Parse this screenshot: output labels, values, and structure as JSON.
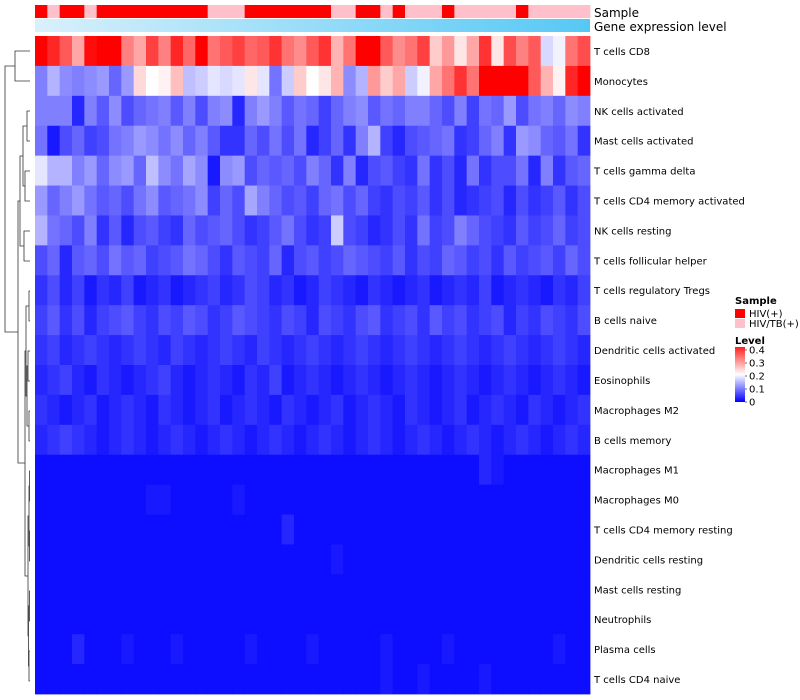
{
  "chart_data": {
    "type": "heatmap",
    "annotation_tracks": [
      "Sample",
      "Gene expression level"
    ],
    "rows": [
      "T cells CD8",
      "Monocytes",
      "NK cells activated",
      "Mast cells activated",
      "T cells gamma delta",
      "T cells CD4 memory activated",
      "NK cells resting",
      "T cells follicular helper",
      "T cells regulatory  Tregs",
      "B cells naive",
      "Dendritic cells activated",
      "Eosinophils",
      "Macrophages M2",
      "B cells memory",
      "Macrophages M1",
      "Macrophages M0",
      "T cells CD4 memory resting",
      "Dendritic cells resting",
      "Mast cells resting",
      "Neutrophils",
      "Plasma cells",
      "T cells CD4 naive"
    ],
    "n_columns": 45,
    "sample_groups": [
      "HIV(+)",
      "HIV/TB(+)",
      "HIV(+)",
      "HIV(+)",
      "HIV/TB(+)",
      "HIV(+)",
      "HIV(+)",
      "HIV(+)",
      "HIV(+)",
      "HIV(+)",
      "HIV(+)",
      "HIV(+)",
      "HIV(+)",
      "HIV(+)",
      "HIV/TB(+)",
      "HIV/TB(+)",
      "HIV/TB(+)",
      "HIV(+)",
      "HIV(+)",
      "HIV(+)",
      "HIV(+)",
      "HIV(+)",
      "HIV(+)",
      "HIV(+)",
      "HIV/TB(+)",
      "HIV/TB(+)",
      "HIV(+)",
      "HIV(+)",
      "HIV/TB(+)",
      "HIV(+)",
      "HIV/TB(+)",
      "HIV/TB(+)",
      "HIV/TB(+)",
      "HIV(+)",
      "HIV/TB(+)",
      "HIV/TB(+)",
      "HIV/TB(+)",
      "HIV/TB(+)",
      "HIV/TB(+)",
      "HIV(+)",
      "HIV/TB(+)",
      "HIV/TB(+)",
      "HIV/TB(+)",
      "HIV/TB(+)",
      "HIV/TB(+)"
    ],
    "values": [
      [
        0.42,
        0.37,
        0.33,
        0.27,
        0.39,
        0.4,
        0.41,
        0.3,
        0.27,
        0.35,
        0.3,
        0.37,
        0.32,
        0.4,
        0.31,
        0.33,
        0.35,
        0.32,
        0.33,
        0.36,
        0.31,
        0.29,
        0.33,
        0.36,
        0.26,
        0.31,
        0.41,
        0.4,
        0.33,
        0.29,
        0.31,
        0.35,
        0.24,
        0.28,
        0.22,
        0.27,
        0.36,
        0.22,
        0.34,
        0.3,
        0.33,
        0.17,
        0.19,
        0.31,
        0.34
      ],
      [
        0.1,
        0.14,
        0.11,
        0.1,
        0.11,
        0.12,
        0.08,
        0.12,
        0.23,
        0.2,
        0.21,
        0.25,
        0.15,
        0.16,
        0.18,
        0.17,
        0.18,
        0.22,
        0.18,
        0.09,
        0.16,
        0.24,
        0.2,
        0.22,
        0.26,
        0.11,
        0.14,
        0.28,
        0.24,
        0.27,
        0.16,
        0.19,
        0.27,
        0.31,
        0.36,
        0.31,
        0.42,
        0.4,
        0.46,
        0.44,
        0.33,
        0.26,
        0.21,
        0.37,
        0.44
      ],
      [
        0.1,
        0.1,
        0.1,
        0.03,
        0.1,
        0.07,
        0.11,
        0.06,
        0.08,
        0.09,
        0.1,
        0.07,
        0.1,
        0.06,
        0.1,
        0.11,
        0.03,
        0.1,
        0.12,
        0.1,
        0.07,
        0.09,
        0.08,
        0.05,
        0.08,
        0.1,
        0.11,
        0.07,
        0.09,
        0.08,
        0.1,
        0.1,
        0.08,
        0.06,
        0.1,
        0.05,
        0.09,
        0.08,
        0.12,
        0.06,
        0.09,
        0.1,
        0.08,
        0.11,
        0.1
      ],
      [
        0.09,
        0.02,
        0.06,
        0.08,
        0.05,
        0.06,
        0.09,
        0.1,
        0.12,
        0.11,
        0.09,
        0.11,
        0.08,
        0.1,
        0.07,
        0.04,
        0.04,
        0.08,
        0.06,
        0.09,
        0.06,
        0.09,
        0.03,
        0.05,
        0.08,
        0.04,
        0.1,
        0.14,
        0.05,
        0.03,
        0.06,
        0.07,
        0.08,
        0.09,
        0.04,
        0.05,
        0.08,
        0.1,
        0.04,
        0.12,
        0.11,
        0.08,
        0.07,
        0.09,
        0.04
      ],
      [
        0.18,
        0.14,
        0.14,
        0.1,
        0.12,
        0.08,
        0.11,
        0.12,
        0.08,
        0.15,
        0.11,
        0.09,
        0.13,
        0.11,
        0.02,
        0.11,
        0.12,
        0.06,
        0.08,
        0.07,
        0.08,
        0.06,
        0.1,
        0.08,
        0.04,
        0.1,
        0.03,
        0.06,
        0.07,
        0.05,
        0.04,
        0.09,
        0.04,
        0.06,
        0.03,
        0.09,
        0.04,
        0.06,
        0.06,
        0.09,
        0.03,
        0.1,
        0.04,
        0.07,
        0.08
      ],
      [
        0.12,
        0.08,
        0.1,
        0.12,
        0.09,
        0.07,
        0.08,
        0.06,
        0.09,
        0.11,
        0.07,
        0.08,
        0.09,
        0.11,
        0.05,
        0.08,
        0.06,
        0.13,
        0.1,
        0.08,
        0.06,
        0.07,
        0.05,
        0.08,
        0.09,
        0.06,
        0.08,
        0.05,
        0.04,
        0.06,
        0.05,
        0.07,
        0.04,
        0.06,
        0.03,
        0.04,
        0.05,
        0.06,
        0.03,
        0.06,
        0.04,
        0.05,
        0.07,
        0.04,
        0.06
      ],
      [
        0.14,
        0.09,
        0.08,
        0.06,
        0.1,
        0.04,
        0.07,
        0.03,
        0.06,
        0.07,
        0.05,
        0.04,
        0.08,
        0.06,
        0.07,
        0.08,
        0.06,
        0.04,
        0.05,
        0.07,
        0.09,
        0.06,
        0.04,
        0.05,
        0.16,
        0.06,
        0.05,
        0.03,
        0.04,
        0.06,
        0.04,
        0.09,
        0.05,
        0.06,
        0.1,
        0.08,
        0.06,
        0.05,
        0.04,
        0.07,
        0.05,
        0.06,
        0.08,
        0.05,
        0.06
      ],
      [
        0.06,
        0.08,
        0.03,
        0.07,
        0.08,
        0.06,
        0.09,
        0.07,
        0.08,
        0.05,
        0.06,
        0.07,
        0.09,
        0.08,
        0.06,
        0.04,
        0.07,
        0.06,
        0.05,
        0.08,
        0.03,
        0.06,
        0.07,
        0.05,
        0.06,
        0.08,
        0.07,
        0.06,
        0.05,
        0.07,
        0.04,
        0.06,
        0.05,
        0.08,
        0.07,
        0.05,
        0.06,
        0.04,
        0.07,
        0.05,
        0.06,
        0.07,
        0.05,
        0.08,
        0.06
      ],
      [
        0.04,
        0.06,
        0.03,
        0.05,
        0.02,
        0.04,
        0.03,
        0.05,
        0.02,
        0.03,
        0.04,
        0.02,
        0.03,
        0.04,
        0.05,
        0.03,
        0.04,
        0.06,
        0.05,
        0.03,
        0.04,
        0.02,
        0.03,
        0.05,
        0.04,
        0.03,
        0.02,
        0.04,
        0.03,
        0.02,
        0.03,
        0.04,
        0.02,
        0.03,
        0.04,
        0.03,
        0.05,
        0.02,
        0.03,
        0.04,
        0.03,
        0.02,
        0.04,
        0.03,
        0.05
      ],
      [
        0.05,
        0.07,
        0.04,
        0.06,
        0.03,
        0.05,
        0.06,
        0.07,
        0.05,
        0.04,
        0.06,
        0.05,
        0.07,
        0.06,
        0.04,
        0.05,
        0.07,
        0.06,
        0.05,
        0.04,
        0.06,
        0.05,
        0.03,
        0.06,
        0.05,
        0.04,
        0.06,
        0.07,
        0.04,
        0.05,
        0.06,
        0.04,
        0.07,
        0.05,
        0.06,
        0.04,
        0.05,
        0.06,
        0.03,
        0.05,
        0.04,
        0.06,
        0.05,
        0.04,
        0.06
      ],
      [
        0.04,
        0.05,
        0.03,
        0.04,
        0.05,
        0.04,
        0.03,
        0.04,
        0.05,
        0.04,
        0.03,
        0.05,
        0.04,
        0.03,
        0.04,
        0.05,
        0.04,
        0.03,
        0.05,
        0.04,
        0.03,
        0.04,
        0.05,
        0.04,
        0.03,
        0.04,
        0.05,
        0.04,
        0.03,
        0.04,
        0.05,
        0.04,
        0.03,
        0.04,
        0.05,
        0.04,
        0.03,
        0.04,
        0.05,
        0.04,
        0.03,
        0.04,
        0.05,
        0.04,
        0.03
      ],
      [
        0.03,
        0.04,
        0.05,
        0.03,
        0.02,
        0.04,
        0.03,
        0.02,
        0.03,
        0.04,
        0.05,
        0.03,
        0.02,
        0.03,
        0.04,
        0.03,
        0.02,
        0.04,
        0.03,
        0.05,
        0.02,
        0.03,
        0.04,
        0.03,
        0.02,
        0.03,
        0.04,
        0.03,
        0.02,
        0.03,
        0.04,
        0.03,
        0.02,
        0.03,
        0.04,
        0.03,
        0.02,
        0.03,
        0.04,
        0.03,
        0.02,
        0.03,
        0.04,
        0.03,
        0.02
      ],
      [
        0.04,
        0.03,
        0.02,
        0.03,
        0.04,
        0.02,
        0.03,
        0.04,
        0.03,
        0.02,
        0.04,
        0.03,
        0.02,
        0.03,
        0.04,
        0.02,
        0.03,
        0.04,
        0.03,
        0.02,
        0.04,
        0.03,
        0.02,
        0.03,
        0.04,
        0.02,
        0.03,
        0.04,
        0.03,
        0.02,
        0.04,
        0.03,
        0.02,
        0.03,
        0.04,
        0.02,
        0.03,
        0.04,
        0.03,
        0.02,
        0.04,
        0.03,
        0.02,
        0.03,
        0.04
      ],
      [
        0.03,
        0.04,
        0.05,
        0.04,
        0.03,
        0.02,
        0.03,
        0.04,
        0.03,
        0.02,
        0.03,
        0.04,
        0.03,
        0.02,
        0.03,
        0.04,
        0.03,
        0.02,
        0.03,
        0.04,
        0.03,
        0.02,
        0.03,
        0.04,
        0.03,
        0.02,
        0.03,
        0.04,
        0.03,
        0.02,
        0.03,
        0.04,
        0.03,
        0.02,
        0.03,
        0.04,
        0.03,
        0.02,
        0.03,
        0.04,
        0.03,
        0.02,
        0.03,
        0.04,
        0.03
      ],
      [
        0.01,
        0.01,
        0.01,
        0.01,
        0.01,
        0.01,
        0.01,
        0.01,
        0.01,
        0.01,
        0.01,
        0.01,
        0.01,
        0.01,
        0.01,
        0.01,
        0.01,
        0.01,
        0.01,
        0.01,
        0.01,
        0.01,
        0.01,
        0.01,
        0.01,
        0.01,
        0.01,
        0.01,
        0.01,
        0.01,
        0.01,
        0.01,
        0.01,
        0.01,
        0.01,
        0.01,
        0.03,
        0.02,
        0.01,
        0.01,
        0.01,
        0.01,
        0.01,
        0.01,
        0.01
      ],
      [
        0.01,
        0.01,
        0.01,
        0.01,
        0.01,
        0.01,
        0.01,
        0.01,
        0.01,
        0.02,
        0.02,
        0.01,
        0.01,
        0.01,
        0.01,
        0.01,
        0.02,
        0.01,
        0.01,
        0.01,
        0.01,
        0.01,
        0.01,
        0.01,
        0.01,
        0.01,
        0.01,
        0.01,
        0.01,
        0.01,
        0.01,
        0.01,
        0.01,
        0.01,
        0.01,
        0.01,
        0.01,
        0.01,
        0.01,
        0.01,
        0.01,
        0.01,
        0.01,
        0.01,
        0.01
      ],
      [
        0.01,
        0.01,
        0.01,
        0.01,
        0.01,
        0.01,
        0.01,
        0.01,
        0.01,
        0.01,
        0.01,
        0.01,
        0.01,
        0.01,
        0.01,
        0.01,
        0.01,
        0.01,
        0.01,
        0.01,
        0.03,
        0.01,
        0.01,
        0.01,
        0.01,
        0.01,
        0.01,
        0.01,
        0.01,
        0.01,
        0.01,
        0.01,
        0.01,
        0.01,
        0.01,
        0.01,
        0.01,
        0.01,
        0.01,
        0.01,
        0.01,
        0.01,
        0.01,
        0.01,
        0.01
      ],
      [
        0.01,
        0.01,
        0.01,
        0.01,
        0.01,
        0.01,
        0.01,
        0.01,
        0.01,
        0.01,
        0.01,
        0.01,
        0.01,
        0.01,
        0.01,
        0.01,
        0.01,
        0.01,
        0.01,
        0.01,
        0.01,
        0.01,
        0.01,
        0.01,
        0.02,
        0.01,
        0.01,
        0.01,
        0.01,
        0.01,
        0.01,
        0.01,
        0.01,
        0.01,
        0.01,
        0.01,
        0.01,
        0.01,
        0.01,
        0.01,
        0.01,
        0.01,
        0.01,
        0.01,
        0.01
      ],
      [
        0.01,
        0.01,
        0.01,
        0.01,
        0.01,
        0.01,
        0.01,
        0.01,
        0.01,
        0.01,
        0.01,
        0.01,
        0.01,
        0.01,
        0.01,
        0.01,
        0.01,
        0.01,
        0.01,
        0.01,
        0.01,
        0.01,
        0.01,
        0.01,
        0.01,
        0.01,
        0.01,
        0.01,
        0.01,
        0.01,
        0.01,
        0.01,
        0.01,
        0.01,
        0.01,
        0.01,
        0.01,
        0.01,
        0.01,
        0.01,
        0.01,
        0.01,
        0.01,
        0.01,
        0.01
      ],
      [
        0.01,
        0.01,
        0.01,
        0.01,
        0.01,
        0.01,
        0.01,
        0.01,
        0.01,
        0.01,
        0.01,
        0.01,
        0.01,
        0.01,
        0.01,
        0.01,
        0.01,
        0.01,
        0.01,
        0.01,
        0.01,
        0.01,
        0.01,
        0.01,
        0.01,
        0.01,
        0.01,
        0.01,
        0.01,
        0.01,
        0.01,
        0.01,
        0.01,
        0.01,
        0.01,
        0.01,
        0.01,
        0.01,
        0.01,
        0.01,
        0.01,
        0.01,
        0.01,
        0.01,
        0.01
      ],
      [
        0.01,
        0.01,
        0.01,
        0.03,
        0.01,
        0.01,
        0.01,
        0.02,
        0.01,
        0.01,
        0.01,
        0.02,
        0.01,
        0.01,
        0.01,
        0.01,
        0.01,
        0.02,
        0.01,
        0.01,
        0.01,
        0.01,
        0.02,
        0.01,
        0.01,
        0.01,
        0.01,
        0.01,
        0.02,
        0.01,
        0.01,
        0.01,
        0.01,
        0.02,
        0.01,
        0.01,
        0.01,
        0.01,
        0.01,
        0.01,
        0.01,
        0.01,
        0.02,
        0.01,
        0.01
      ],
      [
        0.01,
        0.01,
        0.01,
        0.01,
        0.01,
        0.01,
        0.01,
        0.01,
        0.01,
        0.01,
        0.01,
        0.01,
        0.01,
        0.01,
        0.01,
        0.01,
        0.01,
        0.01,
        0.01,
        0.01,
        0.01,
        0.01,
        0.01,
        0.01,
        0.01,
        0.01,
        0.01,
        0.01,
        0.02,
        0.01,
        0.01,
        0.02,
        0.01,
        0.01,
        0.01,
        0.01,
        0.02,
        0.01,
        0.01,
        0.01,
        0.01,
        0.01,
        0.01,
        0.01,
        0.01
      ]
    ],
    "color_scale": {
      "min": 0,
      "mid": 0.2,
      "max": 0.4,
      "low_color": "#0000ff",
      "mid_color": "#ffffff",
      "high_color": "#ff0000"
    },
    "legend": {
      "sample_title": "Sample",
      "sample_items": [
        {
          "label": "HIV(+)",
          "color": "#ff0000"
        },
        {
          "label": "HIV/TB(+)",
          "color": "#ffc0cb"
        }
      ],
      "level_title": "Level",
      "level_ticks": [
        "0.4",
        "0.3",
        "0.2",
        "0.1",
        "0"
      ],
      "level_tick_values": [
        0.4,
        0.3,
        0.2,
        0.1,
        0
      ]
    },
    "gene_expression_colors": {
      "start": "#d9f0fb",
      "end": "#56c8f5"
    }
  }
}
